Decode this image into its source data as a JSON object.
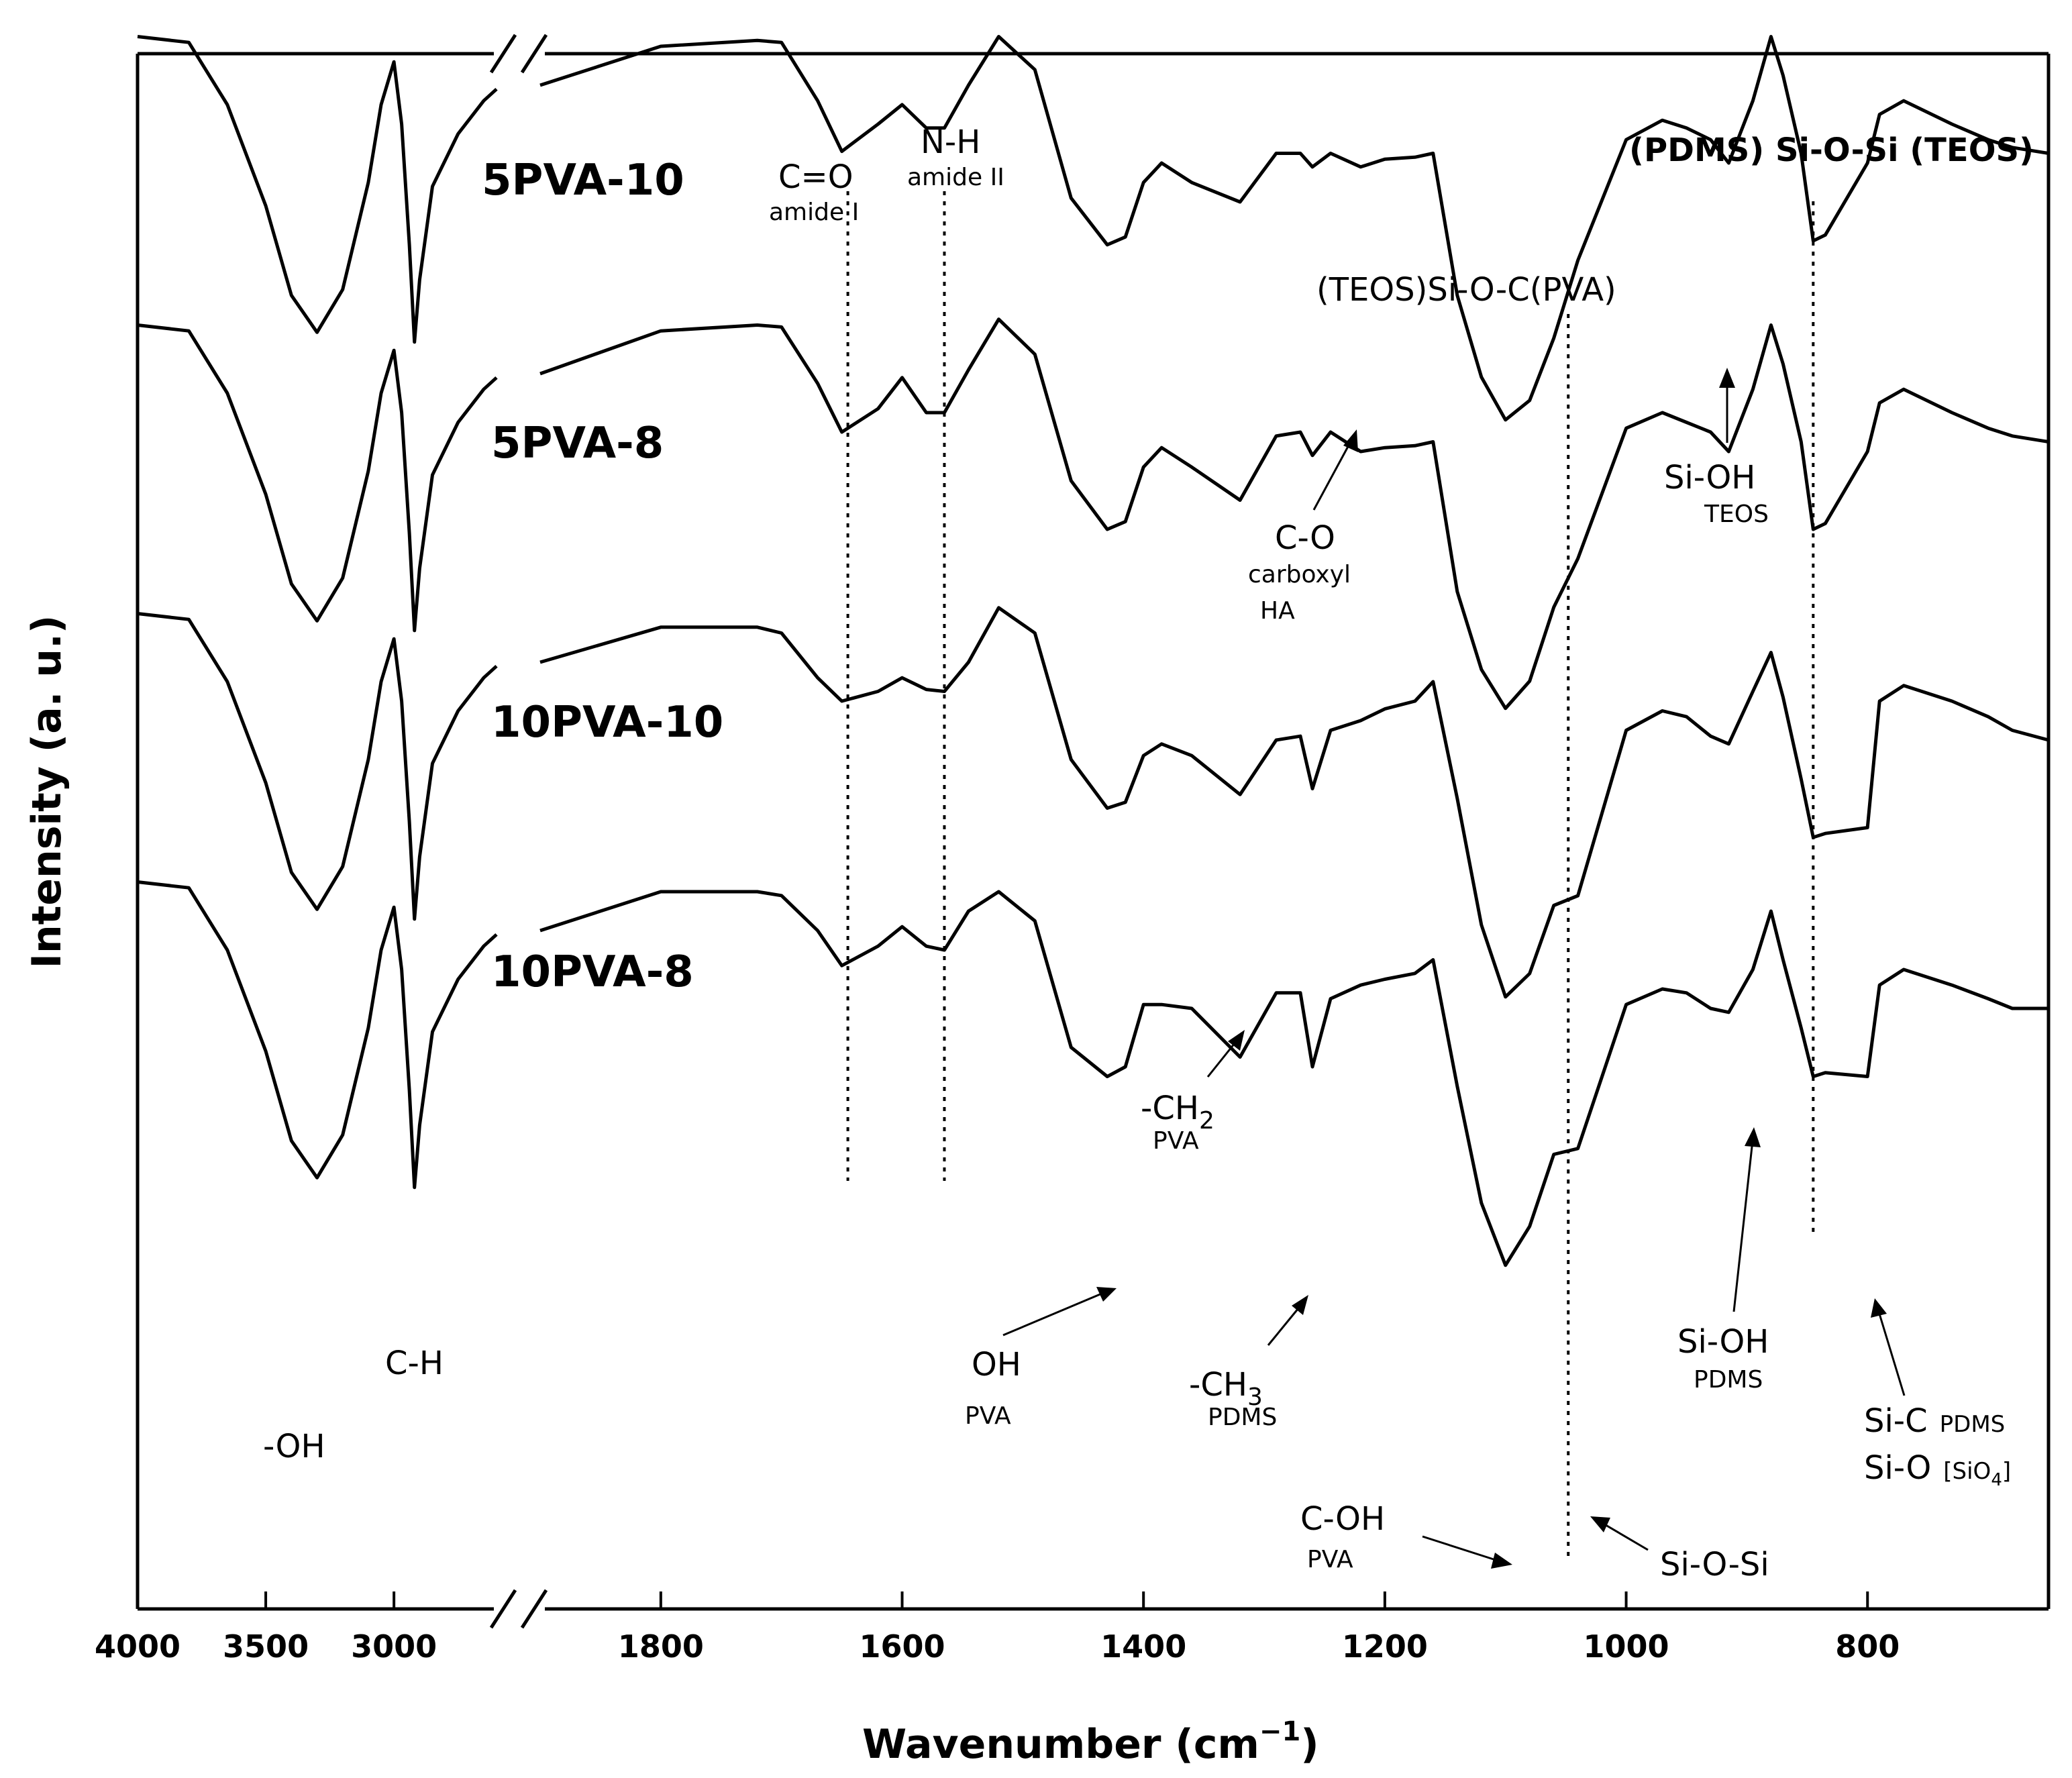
{
  "chart_data": {
    "type": "line",
    "title": "",
    "xlabel": "Wavenumber (cm",
    "xlabel_sup": "−1",
    "xlabel_close": ")",
    "ylabel": "Intensity (a. u.)",
    "x_axis_broken": true,
    "x_segments": [
      {
        "from": 4000,
        "to": 2600
      },
      {
        "from": 1900,
        "to": 650
      }
    ],
    "xticks": [
      "4000",
      "3500",
      "3000",
      "1800",
      "1600",
      "1400",
      "1200",
      "1000",
      "800"
    ],
    "xtick_values": [
      4000,
      3500,
      3000,
      1800,
      1600,
      1400,
      1200,
      1000,
      800
    ],
    "reference_lines": [
      1645,
      1565,
      1048,
      845
    ],
    "series": [
      {
        "name": "5PVA-10",
        "offset": 3,
        "x": [
          4000,
          3800,
          3650,
          3500,
          3400,
          3300,
          3200,
          3100,
          3050,
          3000,
          2970,
          2940,
          2920,
          2900,
          2850,
          2750,
          2650,
          2600,
          1900,
          1800,
          1720,
          1700,
          1670,
          1650,
          1620,
          1600,
          1580,
          1565,
          1545,
          1520,
          1490,
          1460,
          1430,
          1415,
          1400,
          1385,
          1360,
          1320,
          1290,
          1270,
          1260,
          1245,
          1220,
          1200,
          1175,
          1160,
          1140,
          1120,
          1100,
          1080,
          1060,
          1040,
          1000,
          970,
          950,
          930,
          915,
          895,
          880,
          870,
          855,
          845,
          835,
          800,
          790,
          770,
          730,
          700,
          680,
          650
        ],
        "y": [
          0.95,
          0.92,
          0.6,
          0.08,
          -0.38,
          -0.57,
          -0.35,
          0.2,
          0.6,
          0.82,
          0.5,
          -0.12,
          -0.62,
          -0.3,
          0.18,
          0.45,
          0.62,
          0.68,
          0.7,
          0.9,
          0.93,
          0.92,
          0.62,
          0.36,
          0.5,
          0.6,
          0.48,
          0.48,
          0.7,
          0.95,
          0.78,
          0.12,
          -0.12,
          -0.08,
          0.2,
          0.3,
          0.2,
          0.1,
          0.35,
          0.35,
          0.28,
          0.35,
          0.28,
          0.32,
          0.33,
          0.35,
          -0.38,
          -0.8,
          -1.02,
          -0.92,
          -0.6,
          -0.2,
          0.42,
          0.52,
          0.48,
          0.42,
          0.3,
          0.62,
          0.95,
          0.75,
          0.35,
          -0.1,
          -0.07,
          0.3,
          0.55,
          0.62,
          0.5,
          0.42,
          0.38,
          0.35
        ]
      },
      {
        "name": "5PVA-8",
        "offset": 2,
        "x": [
          4000,
          3800,
          3650,
          3500,
          3400,
          3300,
          3200,
          3100,
          3050,
          3000,
          2970,
          2940,
          2920,
          2900,
          2850,
          2750,
          2650,
          2600,
          1900,
          1800,
          1720,
          1700,
          1670,
          1650,
          1620,
          1600,
          1580,
          1565,
          1545,
          1520,
          1490,
          1460,
          1430,
          1415,
          1400,
          1385,
          1360,
          1320,
          1290,
          1270,
          1260,
          1245,
          1220,
          1200,
          1175,
          1160,
          1140,
          1120,
          1100,
          1080,
          1060,
          1040,
          1000,
          970,
          950,
          930,
          915,
          895,
          880,
          870,
          855,
          845,
          835,
          800,
          790,
          770,
          730,
          700,
          680,
          650
        ],
        "y": [
          0.95,
          0.92,
          0.6,
          0.08,
          -0.38,
          -0.57,
          -0.35,
          0.2,
          0.6,
          0.82,
          0.5,
          -0.12,
          -0.62,
          -0.3,
          0.18,
          0.45,
          0.62,
          0.68,
          0.7,
          0.92,
          0.95,
          0.94,
          0.65,
          0.4,
          0.52,
          0.68,
          0.5,
          0.5,
          0.72,
          0.98,
          0.8,
          0.15,
          -0.1,
          -0.06,
          0.22,
          0.32,
          0.22,
          0.05,
          0.38,
          0.4,
          0.28,
          0.4,
          0.3,
          0.32,
          0.33,
          0.35,
          -0.42,
          -0.82,
          -1.02,
          -0.88,
          -0.5,
          -0.25,
          0.42,
          0.5,
          0.45,
          0.4,
          0.3,
          0.62,
          0.95,
          0.75,
          0.35,
          -0.1,
          -0.07,
          0.3,
          0.55,
          0.62,
          0.5,
          0.42,
          0.38,
          0.35
        ]
      },
      {
        "name": "10PVA-10",
        "offset": 1,
        "x": [
          4000,
          3800,
          3650,
          3500,
          3400,
          3300,
          3200,
          3100,
          3050,
          3000,
          2970,
          2940,
          2920,
          2900,
          2850,
          2750,
          2650,
          2600,
          1900,
          1800,
          1720,
          1700,
          1670,
          1650,
          1620,
          1600,
          1580,
          1565,
          1545,
          1520,
          1490,
          1460,
          1430,
          1415,
          1400,
          1385,
          1360,
          1320,
          1290,
          1270,
          1260,
          1245,
          1220,
          1200,
          1175,
          1160,
          1140,
          1120,
          1100,
          1080,
          1060,
          1040,
          1000,
          970,
          950,
          930,
          915,
          895,
          880,
          870,
          855,
          845,
          835,
          800,
          790,
          770,
          730,
          700,
          680,
          650
        ],
        "y": [
          0.95,
          0.92,
          0.6,
          0.08,
          -0.38,
          -0.57,
          -0.35,
          0.2,
          0.6,
          0.82,
          0.5,
          -0.12,
          -0.62,
          -0.3,
          0.18,
          0.45,
          0.62,
          0.68,
          0.7,
          0.88,
          0.88,
          0.85,
          0.62,
          0.5,
          0.55,
          0.62,
          0.56,
          0.55,
          0.7,
          0.98,
          0.85,
          0.2,
          -0.05,
          -0.02,
          0.22,
          0.28,
          0.22,
          0.02,
          0.3,
          0.32,
          0.05,
          0.35,
          0.4,
          0.46,
          0.5,
          0.6,
          0.0,
          -0.65,
          -1.02,
          -0.9,
          -0.55,
          -0.5,
          0.35,
          0.45,
          0.42,
          0.32,
          0.28,
          0.55,
          0.75,
          0.52,
          0.1,
          -0.2,
          -0.18,
          -0.15,
          0.5,
          0.58,
          0.5,
          0.42,
          0.35,
          0.3
        ]
      },
      {
        "name": "10PVA-8",
        "offset": 0,
        "x": [
          4000,
          3800,
          3650,
          3500,
          3400,
          3300,
          3200,
          3100,
          3050,
          3000,
          2970,
          2940,
          2920,
          2900,
          2850,
          2750,
          2650,
          2600,
          1900,
          1800,
          1720,
          1700,
          1670,
          1650,
          1620,
          1600,
          1580,
          1565,
          1545,
          1520,
          1490,
          1460,
          1430,
          1415,
          1400,
          1385,
          1360,
          1320,
          1290,
          1270,
          1260,
          1245,
          1220,
          1200,
          1175,
          1160,
          1140,
          1120,
          1100,
          1080,
          1060,
          1040,
          1000,
          970,
          950,
          930,
          915,
          895,
          880,
          870,
          855,
          845,
          835,
          800,
          790,
          770,
          730,
          700,
          680,
          650
        ],
        "y": [
          0.95,
          0.92,
          0.6,
          0.08,
          -0.38,
          -0.57,
          -0.35,
          0.2,
          0.6,
          0.82,
          0.5,
          -0.12,
          -0.62,
          -0.3,
          0.18,
          0.45,
          0.62,
          0.68,
          0.7,
          0.9,
          0.9,
          0.88,
          0.7,
          0.52,
          0.62,
          0.72,
          0.62,
          0.6,
          0.8,
          0.9,
          0.75,
          0.1,
          -0.05,
          0.0,
          0.32,
          0.32,
          0.3,
          0.05,
          0.38,
          0.38,
          0.0,
          0.35,
          0.42,
          0.45,
          0.48,
          0.55,
          -0.1,
          -0.7,
          -1.02,
          -0.82,
          -0.45,
          -0.42,
          0.32,
          0.4,
          0.38,
          0.3,
          0.28,
          0.5,
          0.8,
          0.55,
          0.2,
          -0.05,
          -0.03,
          -0.05,
          0.42,
          0.5,
          0.42,
          0.35,
          0.3,
          0.3
        ]
      }
    ],
    "annotations": [
      {
        "text": "C=O",
        "sub": "amide I"
      },
      {
        "text": "N-H",
        "sub": "amide II"
      },
      {
        "text": "(PDMS) Si-O-Si (TEOS)"
      },
      {
        "text": "(TEOS)Si-O-C(PVA)"
      },
      {
        "text": "Si-OH",
        "sub": "TEOS"
      },
      {
        "text": "C-O",
        "sub": "carboxyl",
        "sub2": "HA"
      },
      {
        "text": "-CH",
        "subscript": "2",
        "sub": "PVA"
      },
      {
        "text": "OH",
        "sub": "PVA"
      },
      {
        "text": "-CH",
        "subscript": "3",
        "sub": "PDMS"
      },
      {
        "text": "C-OH",
        "sub": "PVA"
      },
      {
        "text": "Si-O-Si"
      },
      {
        "text": "Si-OH",
        "sub": "PDMS"
      },
      {
        "text": "Si-C",
        "suffix": "PDMS"
      },
      {
        "text": "Si-O",
        "suffix": "[SiO",
        "suffix_sub": "4",
        "suffix_close": "]"
      },
      {
        "text": "-OH"
      },
      {
        "text": "C-H"
      }
    ]
  }
}
